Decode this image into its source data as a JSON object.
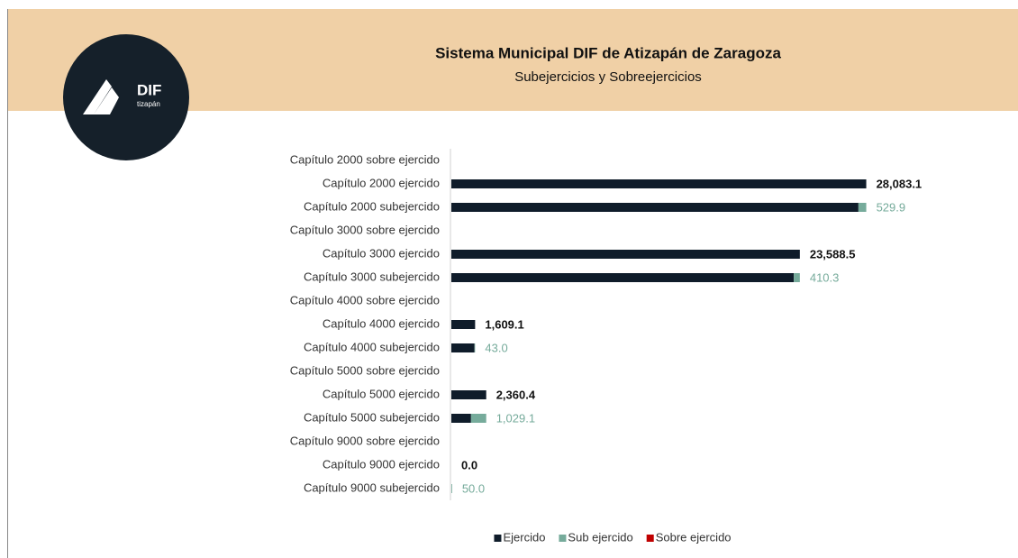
{
  "logo": {
    "name": "DIF",
    "place": "tizapán"
  },
  "chart_data": {
    "type": "bar",
    "orientation": "horizontal",
    "stacked": true,
    "title": "Sistema Municipal DIF de Atizapán de Zaragoza",
    "subtitle": "Subejercicios y Sobreejercicios",
    "categories": [
      "Capítulo 2000 sobre ejercido",
      "Capítulo 2000 ejercido",
      "Capítulo 2000 subejercido",
      "Capítulo 3000 sobre ejercido",
      "Capítulo 3000 ejercido",
      "Capítulo 3000 subejercido",
      "Capítulo 4000 sobre ejercido",
      "Capítulo 4000 ejercido",
      "Capítulo 4000 subejercido",
      "Capítulo 5000 sobre ejercido",
      "Capítulo 5000 ejercido",
      "Capítulo 5000 subejercido",
      "Capítulo 9000 sobre ejercido",
      "Capítulo 9000 ejercido",
      "Capítulo 9000 subejercido"
    ],
    "series": [
      {
        "name": "Ejercido",
        "color": "#0f1c2a",
        "values": [
          null,
          28083.1,
          27553.2,
          null,
          23588.5,
          23178.2,
          null,
          1609.1,
          1566.1,
          null,
          2360.4,
          1331.3,
          null,
          0,
          null
        ],
        "value_labels": [
          null,
          "28,083.1",
          null,
          null,
          "23,588.5",
          null,
          null,
          "1,609.1",
          null,
          null,
          "2,360.4",
          null,
          null,
          "0.0",
          null
        ]
      },
      {
        "name": "Sub ejercido",
        "color": "#76ab9b",
        "values": [
          null,
          null,
          529.9,
          null,
          null,
          410.3,
          null,
          null,
          43,
          null,
          null,
          1029.1,
          null,
          null,
          50
        ],
        "value_labels": [
          null,
          null,
          "529.9",
          null,
          null,
          "410.3",
          null,
          null,
          "43.0",
          null,
          null,
          "1,029.1",
          null,
          null,
          "50.0"
        ]
      },
      {
        "name": "Sobre ejercido",
        "color": "#c00000",
        "values": [
          null,
          null,
          null,
          null,
          null,
          null,
          null,
          null,
          null,
          null,
          null,
          null,
          null,
          null,
          null
        ]
      }
    ],
    "xlim": [
      0,
      35000
    ],
    "legend": "bottom"
  }
}
